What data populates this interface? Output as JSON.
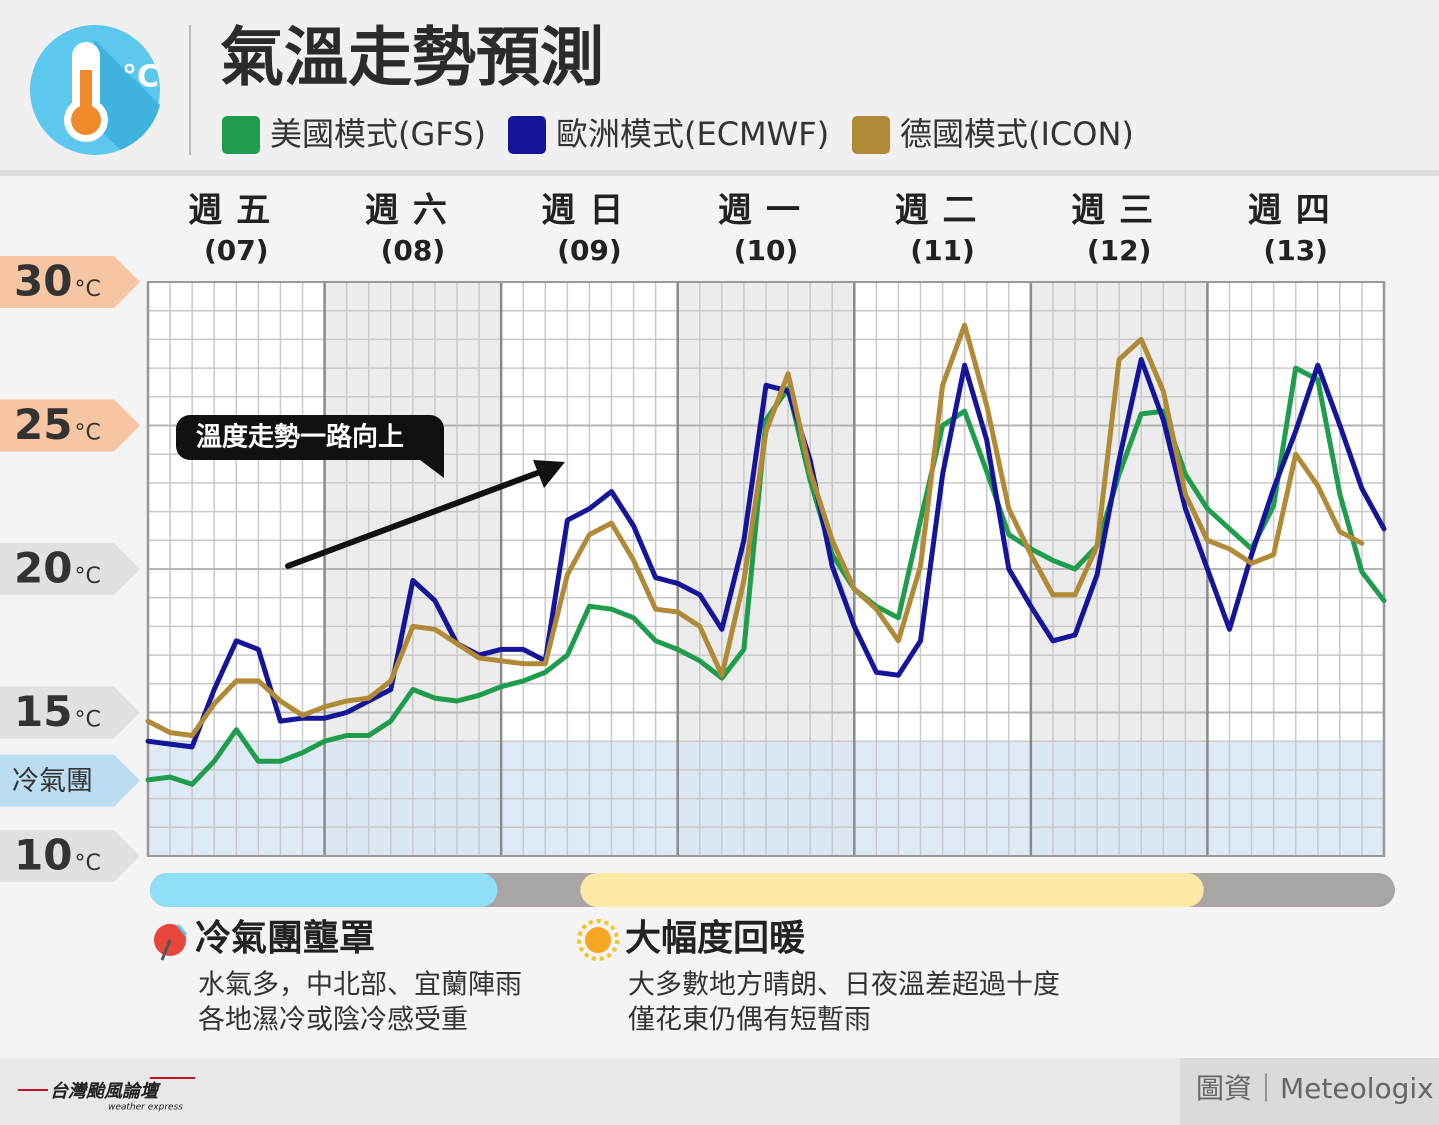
{
  "chart_data": {
    "type": "line",
    "title": "氣溫走勢預測",
    "xlim": [
      0,
      168
    ],
    "xticks": [
      0,
      24,
      48,
      72,
      96,
      120,
      144,
      168
    ],
    "ylim": [
      10,
      30
    ],
    "yticks": [
      10,
      15,
      20,
      25,
      30
    ],
    "yunit": "°C",
    "grid": true,
    "grid_minor": {
      "x": 3,
      "y": 1
    },
    "days": [
      {
        "name": "週五",
        "date": "(07)"
      },
      {
        "name": "週六",
        "date": "(08)"
      },
      {
        "name": "週日",
        "date": "(09)"
      },
      {
        "name": "週一",
        "date": "(10)"
      },
      {
        "name": "週二",
        "date": "(11)"
      },
      {
        "name": "週三",
        "date": "(12)"
      },
      {
        "name": "週四",
        "date": "(13)"
      }
    ],
    "x": [
      0,
      3,
      6,
      9,
      12,
      15,
      18,
      21,
      24,
      27,
      30,
      33,
      36,
      39,
      42,
      45,
      48,
      51,
      54,
      57,
      60,
      63,
      66,
      69,
      72,
      75,
      78,
      81,
      84,
      87,
      90,
      93,
      96,
      99,
      102,
      105,
      108,
      111,
      114,
      117,
      120,
      123,
      126,
      129,
      132,
      135,
      138,
      141,
      144,
      147,
      150,
      153,
      156,
      159,
      162,
      165,
      168
    ],
    "series": [
      {
        "name": "美國模式(GFS)",
        "color": "#1f9d4c",
        "values": [
          12.65,
          12.75,
          12.5,
          13.3,
          14.4,
          13.3,
          13.3,
          13.6,
          14.0,
          14.2,
          14.2,
          14.7,
          15.8,
          15.5,
          15.4,
          15.6,
          15.9,
          16.1,
          16.4,
          17.0,
          18.7,
          18.6,
          18.3,
          17.5,
          17.2,
          16.8,
          16.2,
          17.2,
          25.2,
          26.3,
          23.1,
          20.5,
          19.3,
          18.7,
          18.3,
          21.7,
          25.0,
          25.5,
          23.4,
          21.2,
          20.7,
          20.3,
          20.0,
          20.8,
          23.3,
          25.4,
          25.5,
          23.3,
          22.1,
          21.4,
          20.7,
          22.2,
          27.0,
          26.6,
          22.6,
          19.9,
          18.9
        ]
      },
      {
        "name": "歐洲模式(ECMWF)",
        "color": "#15159a",
        "values": [
          14.0,
          13.9,
          13.8,
          15.8,
          17.5,
          17.2,
          14.7,
          14.8,
          14.8,
          15.0,
          15.4,
          15.8,
          19.6,
          18.9,
          17.4,
          17.0,
          17.2,
          17.2,
          16.8,
          21.7,
          22.1,
          22.7,
          21.5,
          19.7,
          19.5,
          19.1,
          17.9,
          21.0,
          26.4,
          26.2,
          23.8,
          20.1,
          18.0,
          16.4,
          16.3,
          17.5,
          23.3,
          27.1,
          24.5,
          20.0,
          18.7,
          17.5,
          17.7,
          19.8,
          23.8,
          27.3,
          25.2,
          22.1,
          20.0,
          17.9,
          20.5,
          22.8,
          24.8,
          27.1,
          25.0,
          22.8,
          21.4
        ]
      },
      {
        "name": "德國模式(ICON)",
        "color": "#b08a36",
        "values": [
          14.7,
          14.3,
          14.2,
          15.3,
          16.1,
          16.1,
          15.4,
          14.9,
          15.2,
          15.4,
          15.5,
          16.1,
          18.0,
          17.9,
          17.4,
          16.9,
          16.8,
          16.7,
          16.7,
          19.8,
          21.2,
          21.6,
          20.3,
          18.6,
          18.5,
          18.0,
          16.3,
          19.6,
          24.8,
          26.8,
          23.4,
          21.0,
          19.3,
          18.6,
          17.5,
          20.1,
          26.4,
          28.5,
          25.7,
          22.1,
          20.5,
          19.1,
          19.1,
          20.8,
          27.3,
          28.0,
          26.2,
          22.6,
          21.0,
          20.7,
          20.2,
          20.5,
          24.0,
          22.9,
          21.3,
          20.9,
          null
        ]
      }
    ],
    "cold_band": {
      "label": "冷氣團",
      "ylim": [
        10,
        14
      ]
    },
    "annotation": "溫度走勢一路向上",
    "phases": [
      {
        "title": "冷氣團壟罩",
        "color": "#8fdff7",
        "range": [
          0,
          47.5
        ],
        "lines": [
          "水氣多，中北部、宜蘭陣雨",
          "各地濕冷或陰冷感受重"
        ]
      },
      {
        "title": "大幅度回暖",
        "color": "#fde9a3",
        "range": [
          58.5,
          143.5
        ],
        "lines": [
          "大多數地方晴朗、日夜溫差超過十度",
          "僅花東仍偶有短暫雨"
        ]
      }
    ],
    "footer": {
      "logo": "台灣颱風論壇",
      "logo_sub": "weather express",
      "source": "圖資｜Meteologix"
    }
  }
}
